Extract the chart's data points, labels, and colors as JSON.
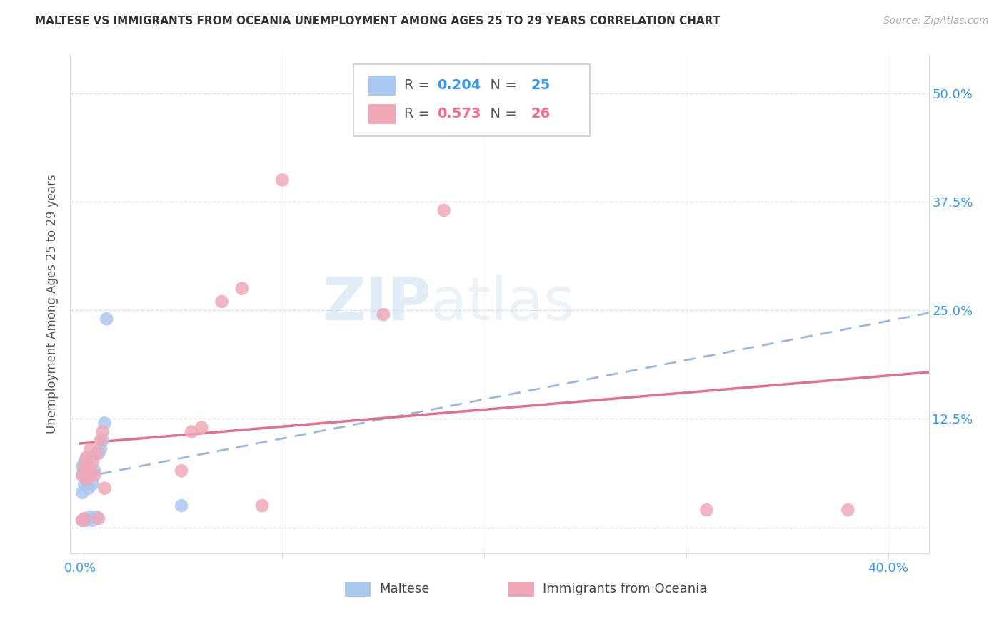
{
  "title": "MALTESE VS IMMIGRANTS FROM OCEANIA UNEMPLOYMENT AMONG AGES 25 TO 29 YEARS CORRELATION CHART",
  "source": "Source: ZipAtlas.com",
  "ylabel": "Unemployment Among Ages 25 to 29 years",
  "xlim": [
    -0.005,
    0.42
  ],
  "ylim": [
    -0.03,
    0.545
  ],
  "xtick_pos": [
    0.0,
    0.1,
    0.2,
    0.3,
    0.4
  ],
  "xticklabels": [
    "0.0%",
    "",
    "",
    "",
    "40.0%"
  ],
  "ytick_pos": [
    0.0,
    0.125,
    0.25,
    0.375,
    0.5
  ],
  "yticklabels": [
    "",
    "12.5%",
    "25.0%",
    "37.5%",
    "50.0%"
  ],
  "maltese_R": 0.204,
  "maltese_N": 25,
  "oceania_R": 0.573,
  "oceania_N": 26,
  "maltese_color": "#a8c8f0",
  "oceania_color": "#f0a8b8",
  "maltese_line_color": "#88aadd",
  "oceania_line_color": "#e06080",
  "watermark_zip": "ZIP",
  "watermark_atlas": "atlas",
  "maltese_legend_r_color": "#3399ff",
  "maltese_legend_n_color": "#3399ff",
  "oceania_legend_r_color": "#ff6688",
  "oceania_legend_n_color": "#ff6688",
  "grid_color": "#dddddd",
  "title_color": "#333333",
  "tick_label_color": "#3399ff",
  "maltese_x": [
    0.001,
    0.001,
    0.001,
    0.001,
    0.002,
    0.002,
    0.002,
    0.002,
    0.003,
    0.003,
    0.003,
    0.004,
    0.004,
    0.005,
    0.005,
    0.006,
    0.006,
    0.007,
    0.008,
    0.009,
    0.01,
    0.011,
    0.012,
    0.013,
    0.05
  ],
  "maltese_y": [
    0.008,
    0.04,
    0.06,
    0.07,
    0.01,
    0.05,
    0.065,
    0.075,
    0.008,
    0.055,
    0.08,
    0.045,
    0.07,
    0.012,
    0.06,
    0.008,
    0.05,
    0.065,
    0.012,
    0.085,
    0.09,
    0.1,
    0.12,
    0.24,
    0.025
  ],
  "oceania_x": [
    0.001,
    0.001,
    0.002,
    0.002,
    0.003,
    0.003,
    0.004,
    0.005,
    0.006,
    0.007,
    0.008,
    0.009,
    0.01,
    0.011,
    0.012,
    0.05,
    0.055,
    0.06,
    0.07,
    0.08,
    0.09,
    0.1,
    0.15,
    0.18,
    0.31,
    0.38
  ],
  "oceania_y": [
    0.008,
    0.06,
    0.01,
    0.07,
    0.055,
    0.08,
    0.065,
    0.09,
    0.075,
    0.06,
    0.085,
    0.01,
    0.1,
    0.11,
    0.045,
    0.065,
    0.11,
    0.115,
    0.26,
    0.275,
    0.025,
    0.4,
    0.245,
    0.365,
    0.02,
    0.02
  ]
}
